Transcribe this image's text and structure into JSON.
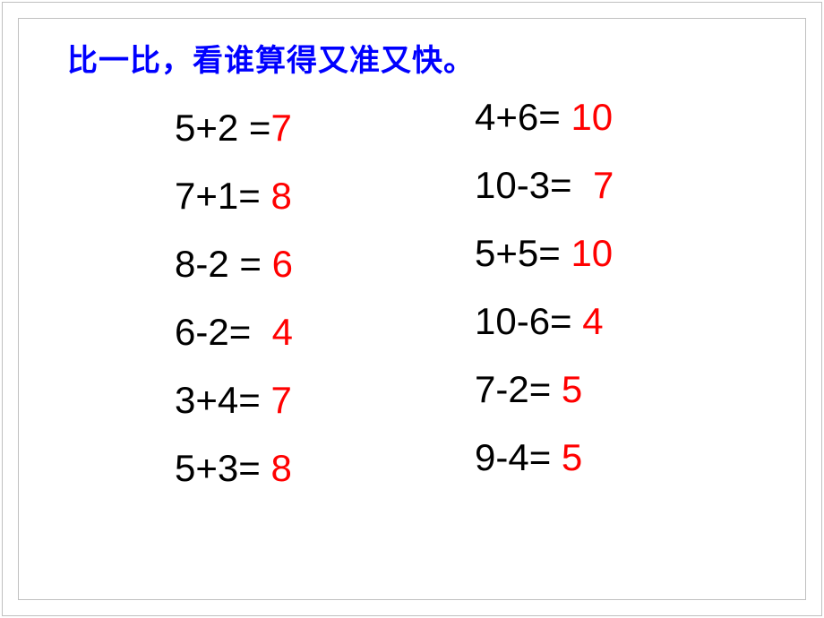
{
  "title": {
    "text": "比一比，看谁算得又准又快。",
    "color": "#0000ff",
    "fontsize": 34
  },
  "equations": {
    "fontsize": 42,
    "expr_color": "#000000",
    "answer_color": "#ff0000",
    "line_height": 76,
    "left": [
      {
        "expr": "5+2 =",
        "answer": "7",
        "answer_offset": 0
      },
      {
        "expr": "7+1= ",
        "answer": "8",
        "answer_offset": 0
      },
      {
        "expr": "8-2 = ",
        "answer": "6",
        "answer_offset": 0
      },
      {
        "expr": "6-2=  ",
        "answer": "4",
        "answer_offset": 0
      },
      {
        "expr": "3+4= ",
        "answer": "7",
        "answer_offset": 0
      },
      {
        "expr": "5+3= ",
        "answer": "8",
        "answer_offset": 0
      }
    ],
    "right": [
      {
        "expr": "4+6= ",
        "answer": "10",
        "answer_offset": 0
      },
      {
        "expr": "10-3=  ",
        "answer": "7",
        "answer_offset": 0
      },
      {
        "expr": "5+5= ",
        "answer": "10",
        "answer_offset": 0
      },
      {
        "expr": "10-6= ",
        "answer": "4",
        "answer_offset": 0
      },
      {
        "expr": "7-2= ",
        "answer": "5",
        "answer_offset": 0
      },
      {
        "expr": "9-4= ",
        "answer": "5",
        "answer_offset": 0
      }
    ]
  },
  "layout": {
    "background_color": "#ffffff",
    "frame_color": "#c0c0c0"
  }
}
